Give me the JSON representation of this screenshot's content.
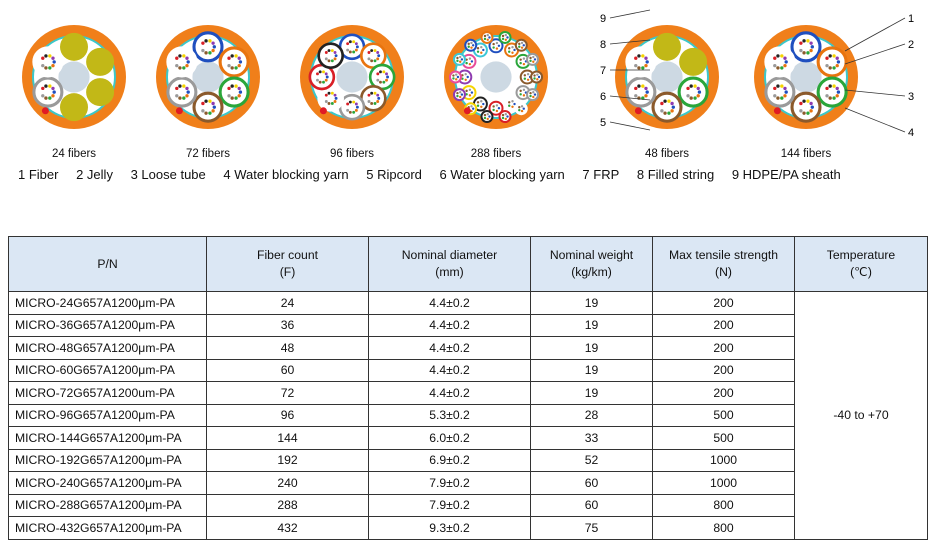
{
  "diagrams": [
    {
      "label": "24 fibers",
      "tubes": 2,
      "fillers": 4,
      "center_color": "#cdd9e3"
    },
    {
      "label": "72 fibers",
      "tubes": 6,
      "fillers": 0,
      "center_color": "#cdd9e3"
    },
    {
      "label": "96 fibers",
      "tubes": 8,
      "fillers": 0,
      "center_color": "#cdd9e3"
    },
    {
      "label": "288 fibers",
      "tubes": 24,
      "fillers": 0,
      "center_color": "#cdd9e3"
    },
    {
      "label": "48 fibers",
      "tubes": 4,
      "fillers": 2,
      "center_color": "#cdd9e3"
    },
    {
      "label": "144 fibers",
      "tubes": 6,
      "fillers": 0,
      "center_color": "#cdd9e3"
    }
  ],
  "callouts_left": [
    "9",
    "8",
    "7",
    "6",
    "5"
  ],
  "callouts_right": [
    "1",
    "2",
    "3",
    "4"
  ],
  "legend": [
    "1 Fiber",
    "2 Jelly",
    "3 Loose tube",
    "4 Water blocking yarn",
    "5 Ripcord",
    "6 Water blocking yarn",
    "7 FRP",
    "8 Filled string",
    "9 HDPE/PA sheath"
  ],
  "table": {
    "headers": [
      {
        "line1": "P/N",
        "line2": ""
      },
      {
        "line1": "Fiber count",
        "line2": "(F)"
      },
      {
        "line1": "Nominal diameter",
        "line2": "(mm)"
      },
      {
        "line1": "Nominal weight",
        "line2": "(kg/km)"
      },
      {
        "line1": "Max tensile strength",
        "line2": "(N)"
      },
      {
        "line1": "Temperature",
        "line2": "(℃)"
      }
    ],
    "temperature": "-40 to +70",
    "rows": [
      [
        "MICRO-24G657A1200μm-PA",
        "24",
        "4.4±0.2",
        "19",
        "200"
      ],
      [
        "MICRO-36G657A1200μm-PA",
        "36",
        "4.4±0.2",
        "19",
        "200"
      ],
      [
        "MICRO-48G657A1200μm-PA",
        "48",
        "4.4±0.2",
        "19",
        "200"
      ],
      [
        "MICRO-60G657A1200μm-PA",
        "60",
        "4.4±0.2",
        "19",
        "200"
      ],
      [
        "MICRO-72G657A1200um-PA",
        "72",
        "4.4±0.2",
        "19",
        "200"
      ],
      [
        "MICRO-96G657A1200μm-PA",
        "96",
        "5.3±0.2",
        "28",
        "500"
      ],
      [
        "MICRO-144G657A1200μm-PA",
        "144",
        "6.0±0.2",
        "33",
        "500"
      ],
      [
        "MICRO-192G657A1200μm-PA",
        "192",
        "6.9±0.2",
        "52",
        "1000"
      ],
      [
        "MICRO-240G657A1200μm-PA",
        "240",
        "7.9±0.2",
        "60",
        "1000"
      ],
      [
        "MICRO-288G657A1200μm-PA",
        "288",
        "7.9±0.2",
        "60",
        "800"
      ],
      [
        "MICRO-432G657A1200μm-PA",
        "432",
        "9.3±0.2",
        "75",
        "800"
      ]
    ]
  }
}
